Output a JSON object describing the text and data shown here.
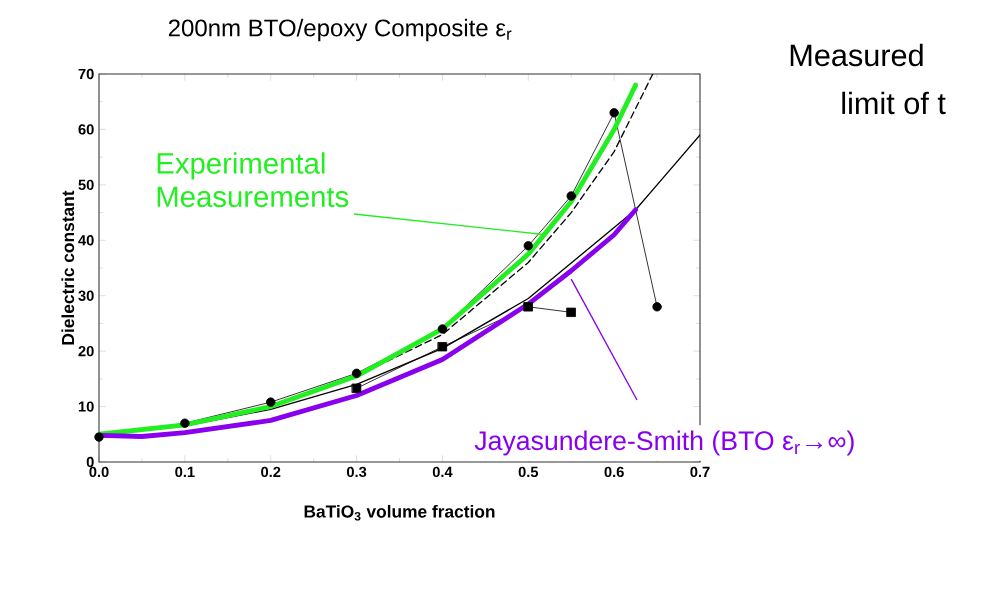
{
  "chart_data": {
    "type": "line",
    "title": "200nm BTO/epoxy Composite ε$_{r}$",
    "xlabel": "BaTiO$_{3}$ volume fraction",
    "ylabel": "Dielectric constant",
    "xlim": [
      0,
      0.7
    ],
    "ylim": [
      0,
      70
    ],
    "xticks": [
      {
        "value": 0,
        "label": "0.0"
      },
      {
        "value": 0.1,
        "label": "0.1"
      },
      {
        "value": 0.2,
        "label": "0.2"
      },
      {
        "value": 0.3,
        "label": "0.3"
      },
      {
        "value": 0.4,
        "label": "0.4"
      },
      {
        "value": 0.5,
        "label": "0.5"
      },
      {
        "value": 0.6,
        "label": "0.6"
      },
      {
        "value": 0.7,
        "label": "0.7"
      }
    ],
    "yticks": [
      0,
      10,
      20,
      30,
      40,
      50,
      60,
      70
    ],
    "grid": false,
    "series": [
      {
        "color": "#000000",
        "marker": "circle",
        "x": [
          0,
          0.1,
          0.2,
          0.3,
          0.4,
          0.5,
          0.55,
          0.6,
          0.65
        ],
        "values": [
          4.5,
          7,
          10.8,
          16,
          24,
          39,
          48,
          63,
          28
        ]
      },
      {
        "color": "#000000",
        "marker": "square",
        "x": [
          0.3,
          0.4,
          0.5,
          0.55
        ],
        "values": [
          13.3,
          20.8,
          28,
          27
        ]
      },
      {
        "color": "#000000",
        "marker": "none",
        "x": [
          0,
          0.1,
          0.2,
          0.3,
          0.4,
          0.5,
          0.55,
          0.6,
          0.625,
          0.65,
          0.7
        ],
        "values": [
          5,
          6.5,
          9.5,
          14,
          20.5,
          29.5,
          null,
          null,
          45.5,
          50,
          59
        ]
      },
      {
        "color": "#000000",
        "marker": "none",
        "line_style": "dashed",
        "x": [
          0,
          0.1,
          0.2,
          0.3,
          0.4,
          0.5,
          0.55,
          0.6,
          0.645
        ],
        "values": [
          5,
          6.7,
          10,
          15.5,
          23,
          36,
          45,
          56,
          70
        ]
      },
      {
        "color": "#22ee22",
        "marker": "none",
        "x": [
          0,
          0.1,
          0.2,
          0.3,
          0.4,
          0.5,
          0.55,
          0.6,
          0.625
        ],
        "values": [
          5,
          6.7,
          10,
          15.5,
          24,
          37.5,
          47,
          60,
          68
        ]
      },
      {
        "color": "#8800ee",
        "marker": "none",
        "x": [
          0,
          0.05,
          0.1,
          0.2,
          0.3,
          0.4,
          0.5,
          0.55,
          0.6,
          0.625
        ],
        "values": [
          4.8,
          4.6,
          5.3,
          7.5,
          12,
          18.5,
          28.5,
          34.5,
          41,
          45.5
        ]
      }
    ],
    "annotations": [
      {
        "text": "Experimental Measurements",
        "x": 0.52,
        "y": 41
      },
      {
        "text": "Jayasundere-Smith (BTO ε$_{r}$→∞)",
        "x": 0.55,
        "y": 33
      },
      "Measured",
      "limit of t"
    ]
  }
}
